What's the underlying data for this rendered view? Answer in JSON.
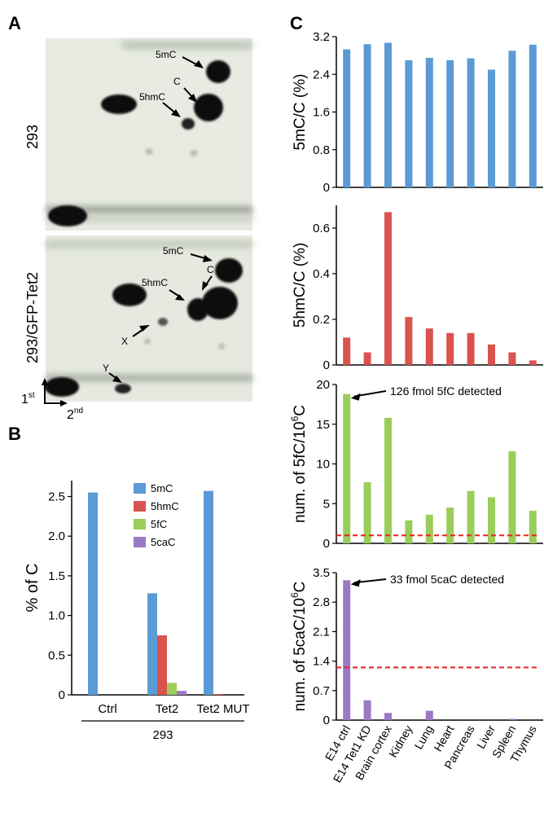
{
  "panels": {
    "a": "A",
    "b": "B",
    "c": "C"
  },
  "tlc": {
    "top_sample": "293",
    "bottom_sample": "293/GFP-Tet2",
    "dim1": "1",
    "dim1_sup": "st",
    "dim2": "2",
    "dim2_sup": "nd",
    "spot_labels_top": [
      "5mC",
      "C",
      "5hmC"
    ],
    "spot_labels_bottom": [
      "5mC",
      "5hmC",
      "C",
      "X",
      "Y"
    ]
  },
  "colors": {
    "blue": "#5b9bd5",
    "red": "#d9534f",
    "green": "#9acd5a",
    "purple": "#9b79c3",
    "threshold": "#e8231f"
  },
  "chart_data": [
    {
      "id": "B",
      "type": "bar",
      "categories": [
        "Ctrl",
        "Tet2",
        "Tet2 MUT"
      ],
      "group_label": "293",
      "ylabel": "% of C",
      "ylim": [
        0,
        2.7
      ],
      "yticks": [
        "0",
        "0.5",
        "1.0",
        "1.5",
        "2.0",
        "2.5"
      ],
      "legend_position": "top-center",
      "series": [
        {
          "name": "5mC",
          "color": "#5b9bd5",
          "values": [
            2.55,
            1.28,
            2.57
          ]
        },
        {
          "name": "5hmC",
          "color": "#d9534f",
          "values": [
            0,
            0.75,
            0.01
          ]
        },
        {
          "name": "5fC",
          "color": "#9acd5a",
          "values": [
            0,
            0.15,
            0
          ]
        },
        {
          "name": "5caC",
          "color": "#9b79c3",
          "values": [
            0,
            0.05,
            0
          ]
        }
      ]
    },
    {
      "id": "C1",
      "type": "bar",
      "categories": [
        "E14 ctrl",
        "E14 Tet1 KD",
        "Brain cortex",
        "Kidney",
        "Lung",
        "Heart",
        "Pancreas",
        "Liver",
        "Spleen",
        "Thymus"
      ],
      "ylabel": "5mC/C (%)",
      "ylim": [
        0,
        3.2
      ],
      "yticks": [
        "0",
        "0.8",
        "1.6",
        "2.4",
        "3.2"
      ],
      "color": "#5b9bd5",
      "values": [
        2.93,
        3.04,
        3.07,
        2.7,
        2.75,
        2.7,
        2.74,
        2.5,
        2.9,
        3.03
      ]
    },
    {
      "id": "C2",
      "type": "bar",
      "categories": [
        "E14 ctrl",
        "E14 Tet1 KD",
        "Brain cortex",
        "Kidney",
        "Lung",
        "Heart",
        "Pancreas",
        "Liver",
        "Spleen",
        "Thymus"
      ],
      "ylabel": "5hmC/C (%)",
      "ylim": [
        0,
        0.7
      ],
      "yticks": [
        "0",
        "0.2",
        "0.4",
        "0.6"
      ],
      "color": "#d9534f",
      "values": [
        0.12,
        0.055,
        0.67,
        0.21,
        0.16,
        0.14,
        0.14,
        0.09,
        0.055,
        0.02
      ]
    },
    {
      "id": "C3",
      "type": "bar",
      "categories": [
        "E14 ctrl",
        "E14 Tet1 KD",
        "Brain cortex",
        "Kidney",
        "Lung",
        "Heart",
        "Pancreas",
        "Liver",
        "Spleen",
        "Thymus"
      ],
      "ylabel": "num. of 5fC/10",
      "ylabel_sup": "6",
      "ylabel_tail": "C",
      "ylim": [
        0,
        20
      ],
      "yticks": [
        "0",
        "5",
        "10",
        "15",
        "20"
      ],
      "color": "#9acd5a",
      "threshold": 1.0,
      "annotation": "126 fmol 5fC detected",
      "values": [
        18.8,
        7.7,
        15.8,
        2.9,
        3.6,
        4.5,
        6.6,
        5.8,
        11.6,
        4.1
      ]
    },
    {
      "id": "C4",
      "type": "bar",
      "categories": [
        "E14 ctrl",
        "E14 Tet1 KD",
        "Brain cortex",
        "Kidney",
        "Lung",
        "Heart",
        "Pancreas",
        "Liver",
        "Spleen",
        "Thymus"
      ],
      "ylabel": "num. of 5caC/10",
      "ylabel_sup": "6",
      "ylabel_tail": "C",
      "ylim": [
        0,
        3.5
      ],
      "yticks": [
        "0",
        "0.7",
        "1.4",
        "2.1",
        "2.8",
        "3.5"
      ],
      "color": "#9b79c3",
      "threshold": 1.25,
      "annotation": "33 fmol 5caC detected",
      "values": [
        3.32,
        0.47,
        0.17,
        0,
        0.22,
        0,
        0,
        0,
        0.03,
        0
      ]
    }
  ]
}
